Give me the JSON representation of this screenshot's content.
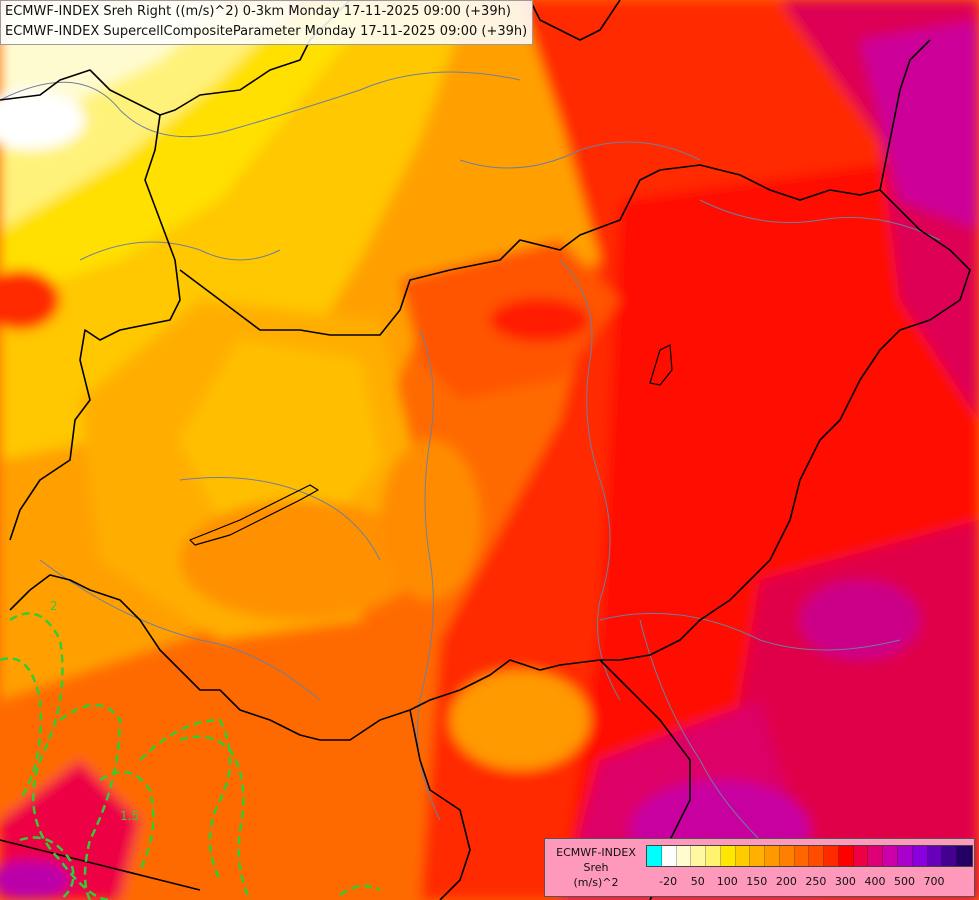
{
  "header": {
    "line1": "ECMWF-INDEX Sreh Right ((m/s)^2) 0-3km Monday 17-11-2025 09:00 (+39h)",
    "line2": "ECMWF-INDEX SupercellCompositeParameter Monday 17-11-2025 09:00 (+39h)"
  },
  "legend": {
    "source": "ECMWF-INDEX",
    "variable": "Sreh",
    "unit": "(m/s)^2",
    "colors": [
      "#00ffff",
      "#ffffff",
      "#fffdd0",
      "#fff8a0",
      "#fff270",
      "#ffe600",
      "#ffcc00",
      "#ffb000",
      "#ff9900",
      "#ff8000",
      "#ff6600",
      "#ff4c00",
      "#ff2a00",
      "#ff0000",
      "#ee0044",
      "#dd0077",
      "#cc00aa",
      "#aa00cc",
      "#8800dd",
      "#6600bb",
      "#44008f",
      "#220066"
    ],
    "ticks": [
      {
        "label": "-20",
        "index": 1
      },
      {
        "label": "50",
        "index": 3
      },
      {
        "label": "100",
        "index": 5
      },
      {
        "label": "150",
        "index": 7
      },
      {
        "label": "200",
        "index": 9
      },
      {
        "label": "250",
        "index": 11
      },
      {
        "label": "300",
        "index": 13
      },
      {
        "label": "400",
        "index": 15
      },
      {
        "label": "500",
        "index": 17
      },
      {
        "label": "700",
        "index": 19
      }
    ]
  },
  "contour_labels": [
    "1.5",
    "2"
  ],
  "colors": {
    "border": "#000000",
    "river": "#6e7fa0",
    "scp_contour": "#33cc33"
  }
}
